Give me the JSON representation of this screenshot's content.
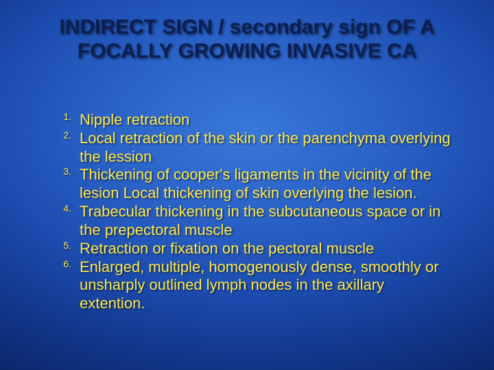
{
  "colors": {
    "title": "#0b1f52",
    "number": "#ffe94a",
    "body": "#ffe94a"
  },
  "fontsize": {
    "title": 30,
    "number": 14,
    "body": 22
  },
  "title": "INDIRECT SIGN / secondary sign OF A FOCALLY GROWING INVASIVE CA",
  "items": [
    {
      "n": "1.",
      "t": "Nipple retraction"
    },
    {
      "n": "2.",
      "t": "Local retraction of the skin or the parenchyma overlying the lession"
    },
    {
      "n": "3.",
      "t": "Thickening of cooper's ligaments in the vicinity of the lesion Local thickening of skin overlying the lesion."
    },
    {
      "n": "4.",
      "t": "Trabecular thickening in the subcutaneous space or in the prepectoral muscle"
    },
    {
      "n": "5.",
      "t": "Retraction or fixation on the pectoral muscle"
    },
    {
      "n": "6.",
      "t": "Enlarged, multiple, homogenously dense, smoothly or unsharply outlined lymph nodes in the axillary extention."
    }
  ]
}
